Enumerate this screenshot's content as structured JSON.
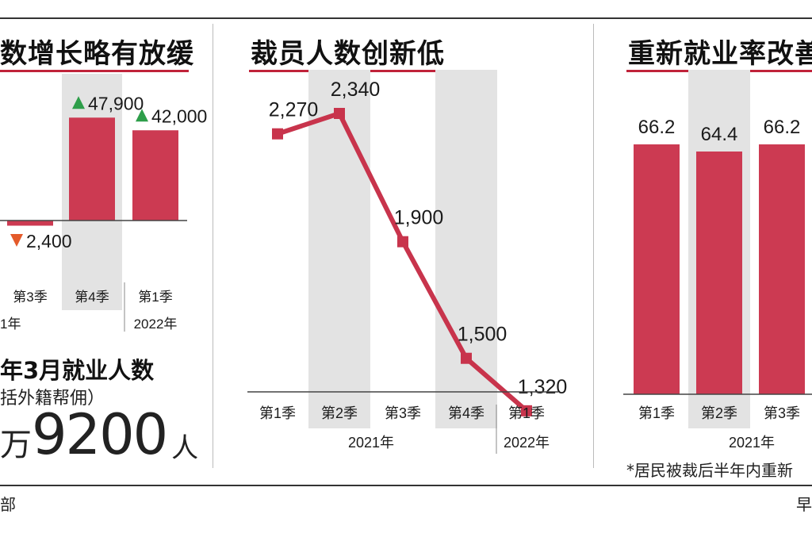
{
  "colors": {
    "bar": "#cc3a52",
    "line": "#c8344c",
    "shade": "#e3e3e3",
    "up": "#2e9e4a",
    "down": "#e45a2a",
    "rule": "#c0233a"
  },
  "panel_left": {
    "title_fragment": "数增长略有放缓",
    "total": {
      "line1": "年3月就业人数",
      "line2": "括外籍帮佣）",
      "prefix": "万",
      "number": "9200",
      "unit": "人"
    }
  },
  "panel_mid": {
    "title": "裁员人数创新低"
  },
  "panel_right": {
    "title_fragment": "重新就业率改善",
    "footnote": "*居民被裁后半年内重新"
  },
  "footer": {
    "source_fragment": "部",
    "credit_fragment": "早"
  },
  "chart_data": [
    {
      "type": "bar",
      "title": "数增长略有放缓",
      "categories": [
        "第3季",
        "第4季",
        "第1季"
      ],
      "values": [
        -2400,
        47900,
        42000
      ],
      "labels": [
        "2,400",
        "47,900",
        "42,000"
      ],
      "directions": [
        "down",
        "up",
        "up"
      ],
      "year_labels": [
        "1年",
        "",
        "2022年"
      ]
    },
    {
      "type": "line",
      "title": "裁员人数创新低",
      "categories": [
        "第1季",
        "第2季",
        "第3季",
        "第4季",
        "第1季"
      ],
      "values": [
        2270,
        2340,
        1900,
        1500,
        1320
      ],
      "labels": [
        "2,270",
        "2,340",
        "1,900",
        "1,500",
        "1,320"
      ],
      "year_labels": [
        "2021年",
        "2022年"
      ],
      "shaded": [
        false,
        true,
        false,
        true,
        false
      ]
    },
    {
      "type": "bar",
      "title": "重新就业率改善",
      "categories": [
        "第1季",
        "第2季",
        "第3季"
      ],
      "values": [
        66.2,
        64.4,
        66.2
      ],
      "labels": [
        "66.2",
        "64.4",
        "66.2"
      ],
      "year_labels": [
        "2021年"
      ],
      "shaded": [
        false,
        true,
        false
      ]
    }
  ]
}
